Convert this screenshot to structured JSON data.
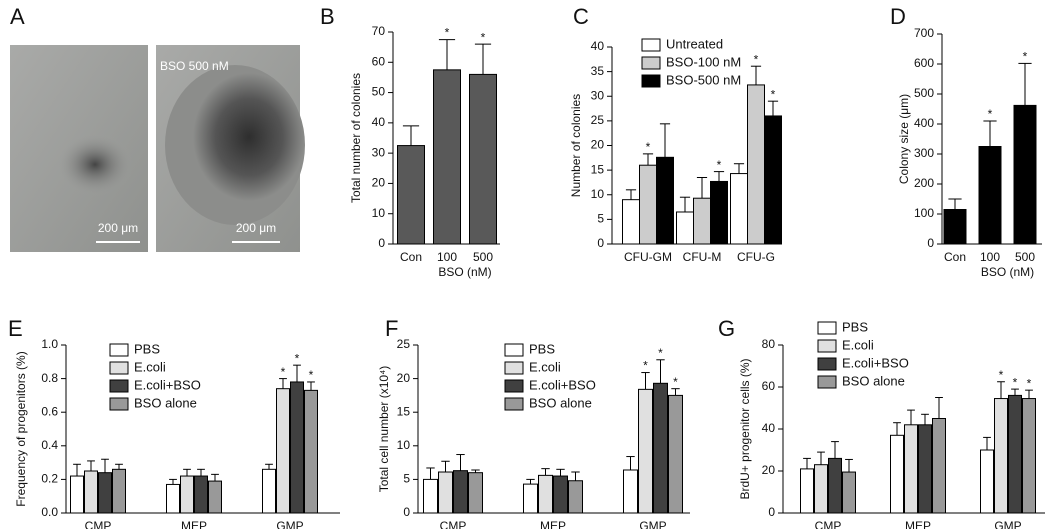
{
  "image_panel": {
    "panel": "A",
    "caption": "BSO 500 nM",
    "scale_left": "200 μm",
    "scale_right": "200 μm"
  },
  "chart_data": [
    {
      "type": "bar",
      "panel": "B",
      "ylabel": "Total number of colonies",
      "xlabel": "BSO (nM)",
      "categories": [
        "Con",
        "100",
        "500"
      ],
      "ylim": [
        0,
        70
      ],
      "yticks": [
        0,
        10,
        20,
        30,
        40,
        50,
        60,
        70
      ],
      "series": [
        {
          "color": "#595959",
          "values": [
            32.5,
            57.5,
            56
          ],
          "errors": [
            6.5,
            10,
            10
          ],
          "annotations": [
            null,
            "*",
            "*"
          ]
        }
      ]
    },
    {
      "type": "bar",
      "panel": "C",
      "ylabel": "Number of colonies",
      "legend": "upper left",
      "categories": [
        "CFU-GM",
        "CFU-M",
        "CFU-G"
      ],
      "ylim": [
        0,
        40
      ],
      "yticks": [
        0,
        5,
        10,
        15,
        20,
        25,
        30,
        35,
        40
      ],
      "series": [
        {
          "name": "Untreated",
          "color": "#ffffff",
          "values": [
            9,
            6.5,
            14.3
          ],
          "errors": [
            2,
            3,
            2
          ],
          "annotations": [
            null,
            null,
            null
          ]
        },
        {
          "name": "BSO-100 nM",
          "color": "#cccccc",
          "values": [
            16,
            9.3,
            32.3
          ],
          "errors": [
            2.3,
            4.2,
            3.8
          ],
          "annotations": [
            "*",
            null,
            "*"
          ]
        },
        {
          "name": "BSO-500 nM",
          "color": "#000000",
          "values": [
            17.6,
            12.7,
            26
          ],
          "errors": [
            6.8,
            2,
            3
          ],
          "annotations": [
            null,
            "*",
            "*"
          ]
        }
      ]
    },
    {
      "type": "bar",
      "panel": "D",
      "ylabel": "Colony size (μm)",
      "xlabel": "BSO (nM)",
      "categories": [
        "Con",
        "100",
        "500"
      ],
      "ylim": [
        0,
        700
      ],
      "yticks": [
        0,
        100,
        200,
        300,
        400,
        500,
        600,
        700
      ],
      "series": [
        {
          "color": "#000000",
          "values": [
            115,
            325,
            462
          ],
          "errors": [
            35,
            85,
            140
          ],
          "annotations": [
            null,
            "*",
            "*"
          ]
        }
      ]
    },
    {
      "type": "bar",
      "panel": "E",
      "ylabel": "Frequency of progenitors (%)",
      "legend": "upper left",
      "categories": [
        "CMP",
        "MEP",
        "GMP"
      ],
      "ylim": [
        0,
        1.0
      ],
      "yticks": [
        {
          "value": 0,
          "label": "0.0"
        },
        0.2,
        0.4,
        0.6,
        0.8,
        {
          "value": 1,
          "label": "1.0"
        }
      ],
      "series": [
        {
          "name": "PBS",
          "color": "#ffffff",
          "values": [
            0.22,
            0.17,
            0.26
          ],
          "errors": [
            0.07,
            0.03,
            0.03
          ],
          "annotations": [
            null,
            null,
            null
          ]
        },
        {
          "name": "E.coli",
          "color": "#e0e0e0",
          "values": [
            0.25,
            0.22,
            0.74
          ],
          "errors": [
            0.06,
            0.04,
            0.06
          ],
          "annotations": [
            null,
            null,
            "*"
          ]
        },
        {
          "name": "E.coli+BSO",
          "color": "#404040",
          "values": [
            0.24,
            0.22,
            0.78
          ],
          "errors": [
            0.08,
            0.04,
            0.1
          ],
          "annotations": [
            null,
            null,
            "*"
          ]
        },
        {
          "name": "BSO alone",
          "color": "#999999",
          "values": [
            0.26,
            0.19,
            0.73
          ],
          "errors": [
            0.03,
            0.04,
            0.05
          ],
          "annotations": [
            null,
            null,
            "*"
          ]
        }
      ]
    },
    {
      "type": "bar",
      "panel": "F",
      "ylabel": "Total cell number (x10⁴)",
      "legend": "upper left",
      "categories": [
        "CMP",
        "MEP",
        "GMP"
      ],
      "ylim": [
        0,
        25
      ],
      "yticks": [
        0,
        5,
        10,
        15,
        20,
        25
      ],
      "series": [
        {
          "name": "PBS",
          "color": "#ffffff",
          "values": [
            5,
            4.3,
            6.4
          ],
          "errors": [
            1.7,
            0.7,
            2
          ],
          "annotations": [
            null,
            null,
            null
          ]
        },
        {
          "name": "E.coli",
          "color": "#e0e0e0",
          "values": [
            6.1,
            5.6,
            18.4
          ],
          "errors": [
            1.6,
            1,
            2.5
          ],
          "annotations": [
            null,
            null,
            "*"
          ]
        },
        {
          "name": "E.coli+BSO",
          "color": "#404040",
          "values": [
            6.3,
            5.5,
            19.3
          ],
          "errors": [
            2.4,
            1,
            3.5
          ],
          "annotations": [
            null,
            null,
            "*"
          ]
        },
        {
          "name": "BSO alone",
          "color": "#999999",
          "values": [
            6,
            4.8,
            17.5
          ],
          "errors": [
            0.4,
            1.3,
            1
          ],
          "annotations": [
            null,
            null,
            "*"
          ]
        }
      ]
    },
    {
      "type": "bar",
      "panel": "G",
      "ylabel": "BrdU+ progenitor cells (%)",
      "legend": "upper left",
      "categories": [
        "CMP",
        "MEP",
        "GMP"
      ],
      "ylim": [
        0,
        80
      ],
      "yticks": [
        0,
        20,
        40,
        60,
        80
      ],
      "series": [
        {
          "name": "PBS",
          "color": "#ffffff",
          "values": [
            21,
            37,
            30
          ],
          "errors": [
            5,
            6,
            6
          ],
          "annotations": [
            null,
            null,
            null
          ]
        },
        {
          "name": "E.coli",
          "color": "#e0e0e0",
          "values": [
            23,
            42,
            54.5
          ],
          "errors": [
            6,
            7,
            8
          ],
          "annotations": [
            null,
            null,
            "*"
          ]
        },
        {
          "name": "E.coli+BSO",
          "color": "#404040",
          "values": [
            26,
            42,
            56
          ],
          "errors": [
            8,
            5,
            3
          ],
          "annotations": [
            null,
            null,
            "*"
          ]
        },
        {
          "name": "BSO alone",
          "color": "#999999",
          "values": [
            19.5,
            45,
            54.5
          ],
          "errors": [
            6,
            10,
            4
          ],
          "annotations": [
            null,
            null,
            "*"
          ]
        }
      ]
    }
  ]
}
